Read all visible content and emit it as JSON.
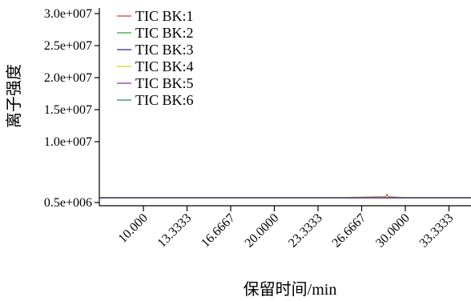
{
  "chart_data": {
    "type": "line",
    "xlabel": "保留时间/min",
    "ylabel": "离子强度",
    "ylim": [
      0,
      30000000
    ],
    "xlim": [
      5.9,
      36.7
    ],
    "y_ticks": [
      500000,
      10000000,
      15000000,
      20000000,
      25000000,
      30000000
    ],
    "y_tick_labels": [
      "0.5e+006",
      "1.0e+007",
      "1.5e+007",
      "2.0e+007",
      "2.5e+007",
      "3.0e+007"
    ],
    "x_ticks": [
      10.0,
      13.3333,
      16.6667,
      20.0,
      23.3333,
      26.6667,
      30.0,
      33.3333
    ],
    "x_tick_labels": [
      "10.000",
      "13.3333",
      "16.6667",
      "20.0000",
      "23.3333",
      "26.6667",
      "30.0000",
      "33.3333"
    ],
    "legend_position": "top-left",
    "series": [
      {
        "name": "TIC BK:1",
        "color": "#e0392b",
        "x": [
          5.9,
          10,
          15,
          20,
          25,
          28.5,
          28.6,
          28.7,
          30,
          36.7
        ],
        "y": [
          1300000.0,
          1300000.0,
          1300000.0,
          1300000.0,
          1300000.0,
          1400000.0,
          1800000.0,
          1400000.0,
          1300000.0,
          1300000.0
        ]
      },
      {
        "name": "TIC BK:2",
        "color": "#3a9a3a",
        "x": [
          5.9,
          10,
          20,
          30,
          36.7
        ],
        "y": [
          1250000.0,
          1250000.0,
          1250000.0,
          1250000.0,
          1250000.0
        ]
      },
      {
        "name": "TIC BK:3",
        "color": "#2b2b7a",
        "x": [
          5.9,
          10,
          20,
          30,
          36.7
        ],
        "y": [
          1200000.0,
          1200000.0,
          1200000.0,
          1200000.0,
          1200000.0
        ]
      },
      {
        "name": "TIC BK:4",
        "color": "#d8d020",
        "x": [
          5.9,
          10,
          20,
          30,
          36.7
        ],
        "y": [
          1250000.0,
          1250000.0,
          1250000.0,
          1250000.0,
          1250000.0
        ]
      },
      {
        "name": "TIC BK:5",
        "color": "#8a2aa0",
        "x": [
          5.9,
          10,
          20,
          30,
          36.7
        ],
        "y": [
          1200000.0,
          1200000.0,
          1200000.0,
          1200000.0,
          1200000.0
        ]
      },
      {
        "name": "TIC BK:6",
        "color": "#2e8b57",
        "x": [
          5.9,
          10,
          20,
          30,
          36.7
        ],
        "y": [
          1300000.0,
          1300000.0,
          1300000.0,
          1300000.0,
          1300000.0
        ]
      }
    ]
  }
}
